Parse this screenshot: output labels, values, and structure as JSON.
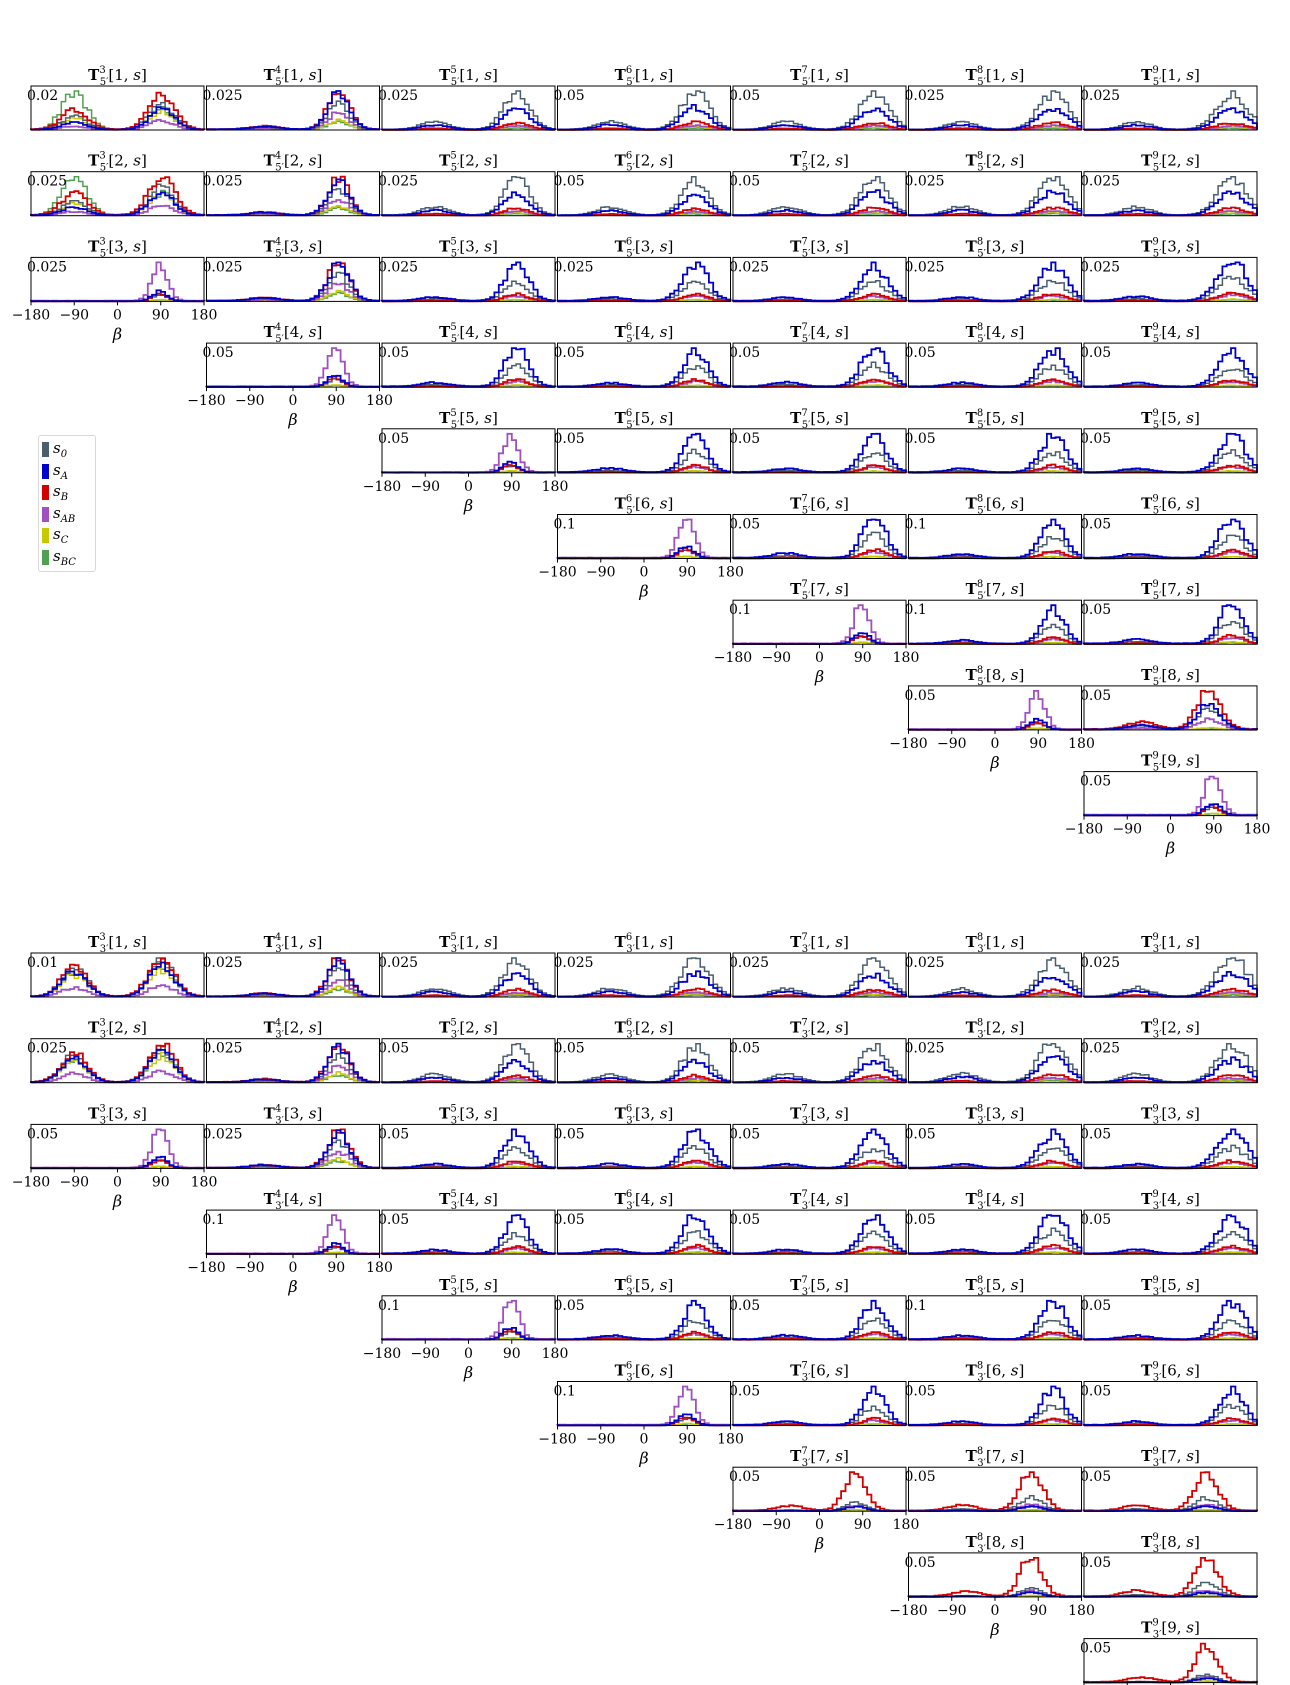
{
  "chart_data": {
    "type": "histogram-matrix",
    "x_range": [
      -180,
      180
    ],
    "x_ticks": [
      "−180",
      "−90",
      "0",
      "90",
      "180"
    ],
    "xlabel": "β",
    "legend": {
      "placement": "left",
      "entries": [
        {
          "key": "s0",
          "label": "s",
          "sub": "0",
          "color": "#4a5f6e"
        },
        {
          "key": "sA",
          "label": "s",
          "sub": "A",
          "color": "#0000cc"
        },
        {
          "key": "sB",
          "label": "s",
          "sub": "B",
          "color": "#d40000"
        },
        {
          "key": "sAB",
          "label": "s",
          "sub": "AB",
          "color": "#a050c0"
        },
        {
          "key": "sC",
          "label": "s",
          "sub": "C",
          "color": "#c8c800"
        },
        {
          "key": "sBC",
          "label": "s",
          "sub": "BC",
          "color": "#50a050"
        }
      ]
    },
    "groups": [
      {
        "prime": "5′",
        "cells": [
          {
            "i": 3,
            "j": 1,
            "ytick": "0.02"
          },
          {
            "i": 4,
            "j": 1,
            "ytick": "0.025"
          },
          {
            "i": 5,
            "j": 1,
            "ytick": "0.025"
          },
          {
            "i": 6,
            "j": 1,
            "ytick": "0.05"
          },
          {
            "i": 7,
            "j": 1,
            "ytick": "0.05"
          },
          {
            "i": 8,
            "j": 1,
            "ytick": "0.025"
          },
          {
            "i": 9,
            "j": 1,
            "ytick": "0.025"
          },
          {
            "i": 3,
            "j": 2,
            "ytick": "0.025"
          },
          {
            "i": 4,
            "j": 2,
            "ytick": "0.025"
          },
          {
            "i": 5,
            "j": 2,
            "ytick": "0.025"
          },
          {
            "i": 6,
            "j": 2,
            "ytick": "0.05"
          },
          {
            "i": 7,
            "j": 2,
            "ytick": "0.05"
          },
          {
            "i": 8,
            "j": 2,
            "ytick": "0.025"
          },
          {
            "i": 9,
            "j": 2,
            "ytick": "0.025"
          },
          {
            "i": 3,
            "j": 3,
            "ytick": "0.025"
          },
          {
            "i": 4,
            "j": 3,
            "ytick": "0.025"
          },
          {
            "i": 5,
            "j": 3,
            "ytick": "0.025"
          },
          {
            "i": 6,
            "j": 3,
            "ytick": "0.025"
          },
          {
            "i": 7,
            "j": 3,
            "ytick": "0.025"
          },
          {
            "i": 8,
            "j": 3,
            "ytick": "0.025"
          },
          {
            "i": 9,
            "j": 3,
            "ytick": "0.025"
          },
          {
            "i": 4,
            "j": 4,
            "ytick": "0.05"
          },
          {
            "i": 5,
            "j": 4,
            "ytick": "0.05"
          },
          {
            "i": 6,
            "j": 4,
            "ytick": "0.05"
          },
          {
            "i": 7,
            "j": 4,
            "ytick": "0.05"
          },
          {
            "i": 8,
            "j": 4,
            "ytick": "0.05"
          },
          {
            "i": 9,
            "j": 4,
            "ytick": "0.05"
          },
          {
            "i": 5,
            "j": 5,
            "ytick": "0.05"
          },
          {
            "i": 6,
            "j": 5,
            "ytick": "0.05"
          },
          {
            "i": 7,
            "j": 5,
            "ytick": "0.05"
          },
          {
            "i": 8,
            "j": 5,
            "ytick": "0.05"
          },
          {
            "i": 9,
            "j": 5,
            "ytick": "0.05"
          },
          {
            "i": 6,
            "j": 6,
            "ytick": "0.1"
          },
          {
            "i": 7,
            "j": 6,
            "ytick": "0.05"
          },
          {
            "i": 8,
            "j": 6,
            "ytick": "0.1"
          },
          {
            "i": 9,
            "j": 6,
            "ytick": "0.05"
          },
          {
            "i": 7,
            "j": 7,
            "ytick": "0.1"
          },
          {
            "i": 8,
            "j": 7,
            "ytick": "0.1"
          },
          {
            "i": 9,
            "j": 7,
            "ytick": "0.05"
          },
          {
            "i": 8,
            "j": 8,
            "ytick": "0.05"
          },
          {
            "i": 9,
            "j": 8,
            "ytick": "0.05"
          },
          {
            "i": 9,
            "j": 9,
            "ytick": "0.05"
          }
        ]
      },
      {
        "prime": "3′",
        "cells": [
          {
            "i": 3,
            "j": 1,
            "ytick": "0.01"
          },
          {
            "i": 4,
            "j": 1,
            "ytick": "0.025"
          },
          {
            "i": 5,
            "j": 1,
            "ytick": "0.025"
          },
          {
            "i": 6,
            "j": 1,
            "ytick": "0.025"
          },
          {
            "i": 7,
            "j": 1,
            "ytick": "0.025"
          },
          {
            "i": 8,
            "j": 1,
            "ytick": "0.025"
          },
          {
            "i": 9,
            "j": 1,
            "ytick": "0.025"
          },
          {
            "i": 3,
            "j": 2,
            "ytick": "0.025"
          },
          {
            "i": 4,
            "j": 2,
            "ytick": "0.025"
          },
          {
            "i": 5,
            "j": 2,
            "ytick": "0.05"
          },
          {
            "i": 6,
            "j": 2,
            "ytick": "0.05"
          },
          {
            "i": 7,
            "j": 2,
            "ytick": "0.05"
          },
          {
            "i": 8,
            "j": 2,
            "ytick": "0.025"
          },
          {
            "i": 9,
            "j": 2,
            "ytick": "0.025"
          },
          {
            "i": 3,
            "j": 3,
            "ytick": "0.05"
          },
          {
            "i": 4,
            "j": 3,
            "ytick": "0.025"
          },
          {
            "i": 5,
            "j": 3,
            "ytick": "0.05"
          },
          {
            "i": 6,
            "j": 3,
            "ytick": "0.05"
          },
          {
            "i": 7,
            "j": 3,
            "ytick": "0.05"
          },
          {
            "i": 8,
            "j": 3,
            "ytick": "0.05"
          },
          {
            "i": 9,
            "j": 3,
            "ytick": "0.05"
          },
          {
            "i": 4,
            "j": 4,
            "ytick": "0.1"
          },
          {
            "i": 5,
            "j": 4,
            "ytick": "0.05"
          },
          {
            "i": 6,
            "j": 4,
            "ytick": "0.05"
          },
          {
            "i": 7,
            "j": 4,
            "ytick": "0.05"
          },
          {
            "i": 8,
            "j": 4,
            "ytick": "0.05"
          },
          {
            "i": 9,
            "j": 4,
            "ytick": "0.05"
          },
          {
            "i": 5,
            "j": 5,
            "ytick": "0.1"
          },
          {
            "i": 6,
            "j": 5,
            "ytick": "0.05"
          },
          {
            "i": 7,
            "j": 5,
            "ytick": "0.05"
          },
          {
            "i": 8,
            "j": 5,
            "ytick": "0.1"
          },
          {
            "i": 9,
            "j": 5,
            "ytick": "0.05"
          },
          {
            "i": 6,
            "j": 6,
            "ytick": "0.1"
          },
          {
            "i": 7,
            "j": 6,
            "ytick": "0.05"
          },
          {
            "i": 8,
            "j": 6,
            "ytick": "0.05"
          },
          {
            "i": 9,
            "j": 6,
            "ytick": "0.05"
          },
          {
            "i": 7,
            "j": 7,
            "ytick": "0.05"
          },
          {
            "i": 8,
            "j": 7,
            "ytick": "0.05"
          },
          {
            "i": 9,
            "j": 7,
            "ytick": "0.05"
          },
          {
            "i": 8,
            "j": 8,
            "ytick": "0.05"
          },
          {
            "i": 9,
            "j": 8,
            "ytick": "0.05"
          },
          {
            "i": 9,
            "j": 9,
            "ytick": "0.05"
          }
        ]
      }
    ]
  }
}
